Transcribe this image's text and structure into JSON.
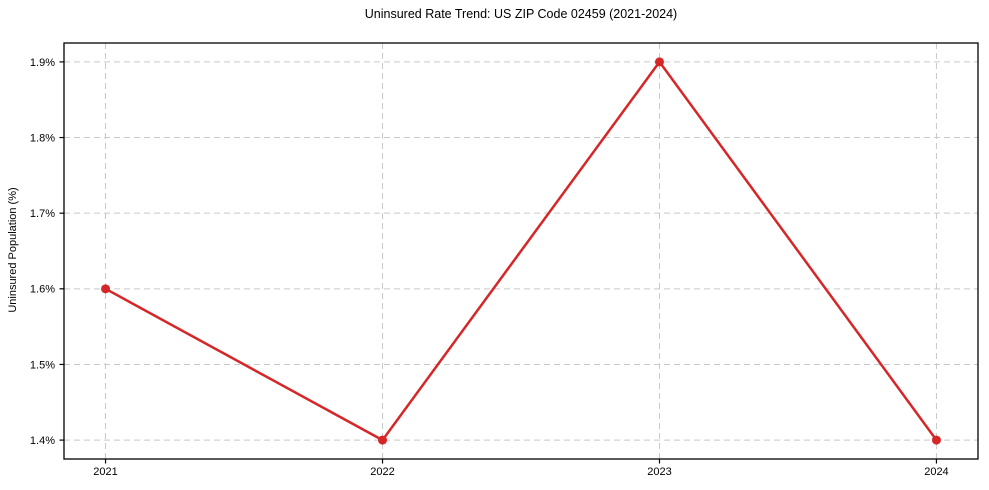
{
  "page": {
    "background": "#ffffff"
  },
  "chart_data": {
    "type": "line",
    "title": "Uninsured Rate Trend: US ZIP Code 02459 (2021-2024)",
    "xlabel": "",
    "ylabel": "Uninsured Population (%)",
    "x": [
      2021,
      2022,
      2023,
      2024
    ],
    "xtick_labels": [
      "2021",
      "2022",
      "2023",
      "2024"
    ],
    "series": [
      {
        "values": [
          1.6,
          1.4,
          1.9,
          1.4
        ],
        "color": "#d62728",
        "marker": "circle",
        "line_width": 2.5
      }
    ],
    "yticks": [
      1.4,
      1.5,
      1.6,
      1.7,
      1.8,
      1.9
    ],
    "ytick_labels": [
      "1.4%",
      "1.5%",
      "1.6%",
      "1.7%",
      "1.8%",
      "1.9%"
    ],
    "ylim": [
      1.375,
      1.925
    ],
    "xlim": [
      2020.85,
      2024.15
    ],
    "grid": true,
    "grid_style": "dashed",
    "grid_color": "#c9c9c9",
    "axis_color": "#000000",
    "text_color": "#000000",
    "legend": false
  }
}
